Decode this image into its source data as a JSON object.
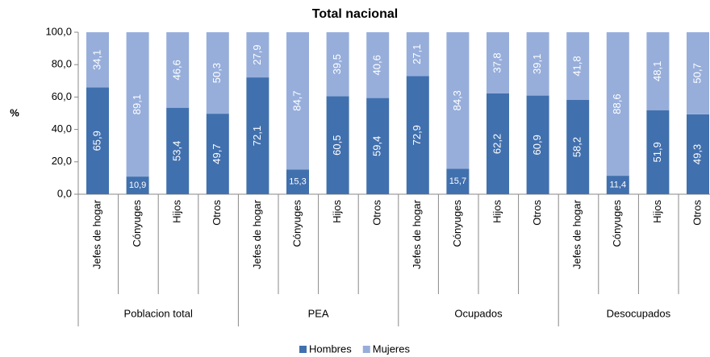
{
  "chart_data": {
    "type": "stacked_bar",
    "title": "Total nacional",
    "y_label": "%",
    "categories": [
      "Jefes de hogar",
      "Cónyuges",
      "Hijos",
      "Otros",
      "Jefes de hogar",
      "Cónyuges",
      "Hijos",
      "Otros",
      "Jefes de hogar",
      "Cónyuges",
      "Hijos",
      "Otros",
      "Jefes de hogar",
      "Cónyuges",
      "Hijos",
      "Otros"
    ],
    "groups": [
      "Poblacion total",
      "PEA",
      "Ocupados",
      "Desocupados"
    ],
    "series": [
      {
        "name": "Hombres",
        "color": "#4170ae",
        "values": [
          65.9,
          10.9,
          53.4,
          49.7,
          72.1,
          15.3,
          60.5,
          59.4,
          72.9,
          15.7,
          62.2,
          60.9,
          58.2,
          11.4,
          51.9,
          49.3
        ],
        "value_labels": [
          "65,9",
          "10,9",
          "53,4",
          "49,7",
          "72,1",
          "15,3",
          "60,5",
          "59,4",
          "72,9",
          "15,7",
          "62,2",
          "60,9",
          "58,2",
          "11,4",
          "51,9",
          "49,3"
        ]
      },
      {
        "name": "Mujeres",
        "color": "#97aedb",
        "values": [
          34.1,
          89.1,
          46.6,
          50.3,
          27.9,
          84.7,
          39.5,
          40.6,
          27.1,
          84.3,
          37.8,
          39.1,
          41.8,
          88.6,
          48.1,
          50.7
        ],
        "value_labels": [
          "34,1",
          "89,1",
          "46,6",
          "50,3",
          "27,9",
          "84,7",
          "39,5",
          "40,6",
          "27,1",
          "84,3",
          "37,8",
          "39,1",
          "41,8",
          "88,6",
          "48,1",
          "50,7"
        ]
      }
    ],
    "ylim": [
      0,
      100
    ],
    "yticks": [
      {
        "value": 0,
        "label": "0,0"
      },
      {
        "value": 20,
        "label": "20,0"
      },
      {
        "value": 40,
        "label": "40,0"
      },
      {
        "value": 60,
        "label": "60,0"
      },
      {
        "value": 80,
        "label": "80,0"
      },
      {
        "value": 100,
        "label": "100,0"
      }
    ],
    "legend": "bottom"
  }
}
